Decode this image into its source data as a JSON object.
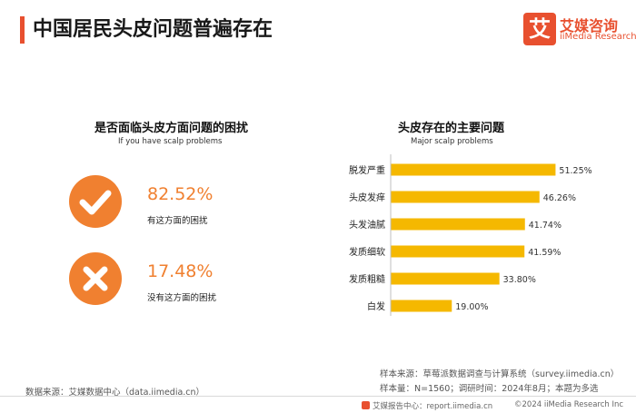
{
  "header": {
    "title": "中国居民头皮问题普遍存在",
    "logo": {
      "mark": "艾",
      "name_cn": "艾媒咨询",
      "name_en": "iiMedia Research"
    }
  },
  "left": {
    "title": "是否面临头皮方面问题的困扰",
    "subtitle": "If you have scalp problems",
    "stats": [
      {
        "icon": "check-icon",
        "value": "82.52%",
        "label": "有这方面的困扰"
      },
      {
        "icon": "cross-icon",
        "value": "17.48%",
        "label": "没有这方面的困扰"
      }
    ],
    "accent_color": "#f08030"
  },
  "right": {
    "title": "头皮存在的主要问题",
    "subtitle": "Major scalp problems"
  },
  "chart_data": [
    {
      "type": "pie",
      "title": "是否面临头皮方面问题的困扰",
      "subtitle": "If you have scalp problems",
      "categories": [
        "有这方面的困扰",
        "没有这方面的困扰"
      ],
      "values": [
        82.52,
        17.48
      ],
      "unit": "%"
    },
    {
      "type": "bar",
      "orientation": "horizontal",
      "title": "头皮存在的主要问题",
      "subtitle": "Major scalp problems",
      "categories": [
        "脱发严重",
        "头皮发痒",
        "头发油腻",
        "发质细软",
        "发质粗糙",
        "白发"
      ],
      "values": [
        51.25,
        46.26,
        41.74,
        41.59,
        33.8,
        19.0
      ],
      "value_labels": [
        "51.25%",
        "46.26%",
        "41.74%",
        "41.59%",
        "33.80%",
        "19.00%"
      ],
      "unit": "%",
      "xlim": [
        0,
        60
      ],
      "bar_color": "#f5b800",
      "axis_color": "#bfbfbf",
      "grid": false,
      "legend": "none"
    }
  ],
  "footer": {
    "source_left": "数据来源：艾媒数据中心（data.iimedia.cn）",
    "source_tool": "样本来源：草莓派数据调查与计算系统（survey.iimedia.cn）",
    "sample_info": "样本量：N=1560；调研时间：2024年8月；本题为多选",
    "report_center": "艾媒报告中心：report.iimedia.cn",
    "copyright": "©2024  iiMedia Research Inc"
  }
}
